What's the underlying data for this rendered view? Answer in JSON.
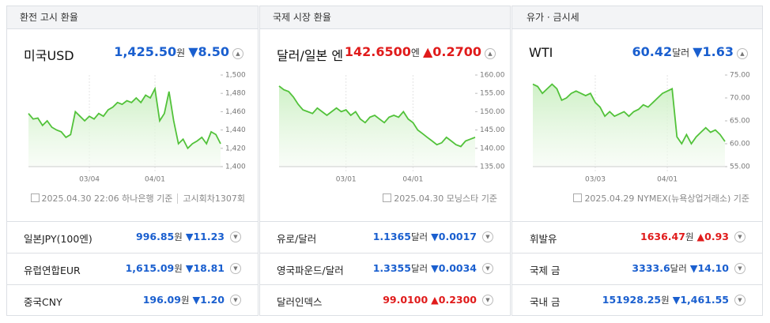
{
  "panels": [
    {
      "header": "환전 고시 환율",
      "main": {
        "name": "미국USD",
        "price": "1,425.50",
        "unit": "원",
        "change": "▼8.50",
        "trend": "down"
      },
      "chart": {
        "type": "line",
        "color": "#52c23a",
        "categories": [
          null,
          null,
          null,
          null,
          null,
          null,
          null,
          null,
          null,
          null,
          null,
          null,
          null,
          "03/04",
          null,
          null,
          null,
          null,
          null,
          null,
          null,
          null,
          null,
          null,
          null,
          null,
          null,
          "04/01",
          null,
          null,
          null,
          null,
          null,
          null,
          null,
          null,
          null,
          null,
          null,
          null,
          null,
          null
        ],
        "values": [
          1458,
          1452,
          1453,
          1445,
          1450,
          1443,
          1440,
          1438,
          1432,
          1435,
          1460,
          1455,
          1450,
          1455,
          1452,
          1458,
          1455,
          1462,
          1465,
          1470,
          1468,
          1472,
          1470,
          1475,
          1470,
          1478,
          1475,
          1485,
          1450,
          1458,
          1482,
          1450,
          1425,
          1430,
          1420,
          1425,
          1428,
          1432,
          1425,
          1438,
          1435,
          1425
        ],
        "ylim": [
          1400,
          1500
        ],
        "yticks": [
          {
            "value": 1400,
            "label": "1,400"
          },
          {
            "value": 1420,
            "label": "1,420"
          },
          {
            "value": 1440,
            "label": "1,440"
          },
          {
            "value": 1460,
            "label": "1,460"
          },
          {
            "value": 1480,
            "label": "1,480"
          },
          {
            "value": 1500,
            "label": "1,500"
          }
        ]
      },
      "footer": [
        "2025.04.30 22:06 하나은행 기준",
        "고시회차1307회"
      ],
      "rows": [
        {
          "name": "일본JPY(100엔)",
          "price": "996.85",
          "unit": "원",
          "change": "▼11.23",
          "trend": "down"
        },
        {
          "name": "유럽연합EUR",
          "price": "1,615.09",
          "unit": "원",
          "change": "▼18.81",
          "trend": "down"
        },
        {
          "name": "중국CNY",
          "price": "196.09",
          "unit": "원",
          "change": "▼1.20",
          "trend": "down"
        }
      ]
    },
    {
      "header": "국제 시장 환율",
      "main": {
        "name": "달러/일본 엔",
        "price": "142.6500",
        "unit": "엔",
        "change": "▲0.2700",
        "trend": "up"
      },
      "chart": {
        "type": "line",
        "color": "#52c23a",
        "categories": [
          null,
          null,
          null,
          null,
          null,
          null,
          null,
          null,
          null,
          null,
          null,
          null,
          null,
          null,
          "03/01",
          null,
          null,
          null,
          null,
          null,
          null,
          null,
          null,
          null,
          null,
          null,
          null,
          null,
          "04/01",
          null,
          null,
          null,
          null,
          null,
          null,
          null,
          null,
          null,
          null,
          null,
          null,
          null
        ],
        "values": [
          157,
          156,
          155.5,
          154,
          152,
          150.5,
          150,
          149.5,
          151,
          150,
          149,
          150,
          151,
          150,
          150.5,
          149,
          150,
          148,
          147,
          148.5,
          149,
          148,
          147,
          148.5,
          149,
          148.5,
          150,
          148,
          147,
          145,
          144,
          143,
          142,
          141,
          141.5,
          143,
          142,
          141,
          140.5,
          142,
          142.5,
          143
        ],
        "ylim": [
          135,
          160
        ],
        "yticks": [
          {
            "value": 135,
            "label": "135.00"
          },
          {
            "value": 140,
            "label": "140.00"
          },
          {
            "value": 145,
            "label": "145.00"
          },
          {
            "value": 150,
            "label": "150.00"
          },
          {
            "value": 155,
            "label": "155.00"
          },
          {
            "value": 160,
            "label": "160.00"
          }
        ]
      },
      "footer": [
        "2025.04.30 모닝스타 기준"
      ],
      "rows": [
        {
          "name": "유로/달러",
          "price": "1.1365",
          "unit": "달러",
          "change": "▼0.0017",
          "trend": "down"
        },
        {
          "name": "영국파운드/달러",
          "price": "1.3355",
          "unit": "달러",
          "change": "▼0.0034",
          "trend": "down"
        },
        {
          "name": "달러인덱스",
          "price": "99.0100",
          "unit": "",
          "change": "▲0.2300",
          "trend": "up"
        }
      ]
    },
    {
      "header": "유가 · 금시세",
      "main": {
        "name": "WTI",
        "price": "60.42",
        "unit": "달러",
        "change": "▼1.63",
        "trend": "down"
      },
      "chart": {
        "type": "line",
        "color": "#52c23a",
        "categories": [
          null,
          null,
          null,
          null,
          null,
          null,
          null,
          null,
          null,
          null,
          null,
          null,
          null,
          "03/03",
          null,
          null,
          null,
          null,
          null,
          null,
          null,
          null,
          null,
          null,
          null,
          null,
          null,
          null,
          "04/01",
          null,
          null,
          null,
          null,
          null,
          null,
          null,
          null,
          null,
          null,
          null,
          null
        ],
        "values": [
          73,
          72.5,
          71,
          72,
          73,
          72,
          69.5,
          70,
          71,
          71.5,
          71,
          70.5,
          71,
          69,
          68,
          66,
          67,
          66,
          66.5,
          67,
          66,
          67,
          67.5,
          68.5,
          68,
          69,
          70,
          71,
          71.5,
          72,
          61.5,
          60,
          62,
          60,
          61.5,
          62.5,
          63.5,
          62.5,
          63,
          62,
          60.5
        ],
        "ylim": [
          55,
          75
        ],
        "yticks": [
          {
            "value": 55,
            "label": "55.00"
          },
          {
            "value": 60,
            "label": "60.00"
          },
          {
            "value": 65,
            "label": "65.00"
          },
          {
            "value": 70,
            "label": "70.00"
          },
          {
            "value": 75,
            "label": "75.00"
          }
        ]
      },
      "footer": [
        "2025.04.29 NYMEX(뉴욕상업거래소) 기준"
      ],
      "rows": [
        {
          "name": "휘발유",
          "price": "1636.47",
          "unit": "원",
          "change": "▲0.93",
          "trend": "up"
        },
        {
          "name": "국제 금",
          "price": "3333.6",
          "unit": "달러",
          "change": "▼14.10",
          "trend": "down"
        },
        {
          "name": "국내 금",
          "price": "151928.25",
          "unit": "원",
          "change": "▼1,461.55",
          "trend": "down"
        }
      ]
    }
  ]
}
